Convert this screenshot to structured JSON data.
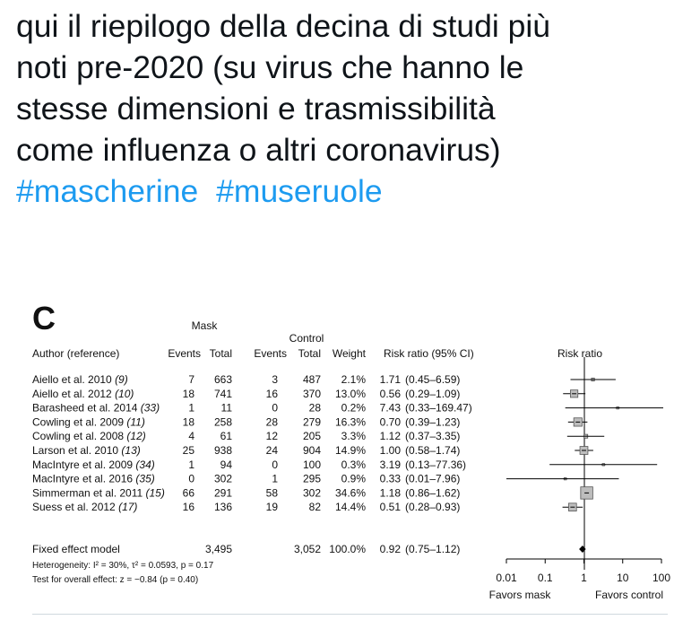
{
  "tweet": {
    "lines": [
      "qui il riepilogo della decina di studi più",
      "noti pre-2020 (su virus che hanno le",
      "stesse dimensioni e trasmissibilità",
      "come influenza o altri coronavirus)"
    ],
    "hashtags": [
      "#mascherine",
      "#museruole"
    ],
    "text_color": "#0f1419",
    "hashtag_color": "#1d9bf0"
  },
  "chart_data": {
    "type": "forest",
    "panel_label": "C",
    "scale": "log",
    "xlim": [
      0.01,
      100
    ],
    "ticks": [
      {
        "value": 0.01,
        "label": "0.01"
      },
      {
        "value": 0.1,
        "label": "0.1"
      },
      {
        "value": 1,
        "label": "1"
      },
      {
        "value": 10,
        "label": "10"
      },
      {
        "value": 100,
        "label": "100"
      }
    ],
    "axis_labels": {
      "left": "Favors mask",
      "right": "Favors control"
    },
    "group_headers": {
      "mask": "Mask",
      "control": "Control"
    },
    "columns": {
      "author": "Author (reference)",
      "mask_events": "Events",
      "mask_total": "Total",
      "control_events": "Events",
      "control_total": "Total",
      "weight": "Weight",
      "rr": "Risk ratio (95% CI)",
      "plot": "Risk ratio"
    },
    "studies": [
      {
        "author": "Aiello et al. 2010",
        "ref": "(9)",
        "mask_events": "7",
        "mask_total": "663",
        "control_events": "3",
        "control_total": "487",
        "weight": "2.1%",
        "rr": "1.71",
        "ci": "(0.45–6.59)",
        "rr_value": 1.71,
        "ci_low": 0.45,
        "ci_high": 6.59,
        "weight_value": 2.1
      },
      {
        "author": "Aiello et al. 2012",
        "ref": "(10)",
        "mask_events": "18",
        "mask_total": "741",
        "control_events": "16",
        "control_total": "370",
        "weight": "13.0%",
        "rr": "0.56",
        "ci": "(0.29–1.09)",
        "rr_value": 0.56,
        "ci_low": 0.29,
        "ci_high": 1.09,
        "weight_value": 13.0
      },
      {
        "author": "Barasheed et al. 2014",
        "ref": "(33)",
        "mask_events": "1",
        "mask_total": "11",
        "control_events": "0",
        "control_total": "28",
        "weight": "0.2%",
        "rr": "7.43",
        "ci": "(0.33–169.47)",
        "rr_value": 7.43,
        "ci_low": 0.33,
        "ci_high": 169.47,
        "weight_value": 0.2
      },
      {
        "author": "Cowling et al. 2009",
        "ref": "(11)",
        "mask_events": "18",
        "mask_total": "258",
        "control_events": "28",
        "control_total": "279",
        "weight": "16.3%",
        "rr": "0.70",
        "ci": "(0.39–1.23)",
        "rr_value": 0.7,
        "ci_low": 0.39,
        "ci_high": 1.23,
        "weight_value": 16.3
      },
      {
        "author": "Cowling et al. 2008",
        "ref": "(12)",
        "mask_events": "4",
        "mask_total": "61",
        "control_events": "12",
        "control_total": "205",
        "weight": "3.3%",
        "rr": "1.12",
        "ci": "(0.37–3.35)",
        "rr_value": 1.12,
        "ci_low": 0.37,
        "ci_high": 3.35,
        "weight_value": 3.3
      },
      {
        "author": "Larson et al. 2010",
        "ref": "(13)",
        "mask_events": "25",
        "mask_total": "938",
        "control_events": "24",
        "control_total": "904",
        "weight": "14.9%",
        "rr": "1.00",
        "ci": "(0.58–1.74)",
        "rr_value": 1.0,
        "ci_low": 0.58,
        "ci_high": 1.74,
        "weight_value": 14.9
      },
      {
        "author": "MacIntyre et al. 2009",
        "ref": "(34)",
        "mask_events": "1",
        "mask_total": "94",
        "control_events": "0",
        "control_total": "100",
        "weight": "0.3%",
        "rr": "3.19",
        "ci": "(0.13–77.36)",
        "rr_value": 3.19,
        "ci_low": 0.13,
        "ci_high": 77.36,
        "weight_value": 0.3
      },
      {
        "author": "MacIntyre et al. 2016",
        "ref": "(35)",
        "mask_events": "0",
        "mask_total": "302",
        "control_events": "1",
        "control_total": "295",
        "weight": "0.9%",
        "rr": "0.33",
        "ci": "(0.01–7.96)",
        "rr_value": 0.33,
        "ci_low": 0.01,
        "ci_high": 7.96,
        "weight_value": 0.9
      },
      {
        "author": "Simmerman et al. 2011",
        "ref": "(15)",
        "mask_events": "66",
        "mask_total": "291",
        "control_events": "58",
        "control_total": "302",
        "weight": "34.6%",
        "rr": "1.18",
        "ci": "(0.86–1.62)",
        "rr_value": 1.18,
        "ci_low": 0.86,
        "ci_high": 1.62,
        "weight_value": 34.6
      },
      {
        "author": "Suess et al. 2012",
        "ref": "(17)",
        "mask_events": "16",
        "mask_total": "136",
        "control_events": "19",
        "control_total": "82",
        "weight": "14.4%",
        "rr": "0.51",
        "ci": "(0.28–0.93)",
        "rr_value": 0.51,
        "ci_low": 0.28,
        "ci_high": 0.93,
        "weight_value": 14.4
      }
    ],
    "pooled": {
      "label": "Fixed effect model",
      "mask_total": "3,495",
      "control_total": "3,052",
      "weight": "100.0%",
      "rr": "0.92",
      "ci": "(0.75–1.12)",
      "rr_value": 0.92,
      "ci_low": 0.75,
      "ci_high": 1.12
    },
    "heterogeneity": "Heterogeneity: I² = 30%, τ² = 0.0593, p = 0.17",
    "overall_effect": "Test for overall effect: z = −0.84 (p = 0.40)"
  }
}
